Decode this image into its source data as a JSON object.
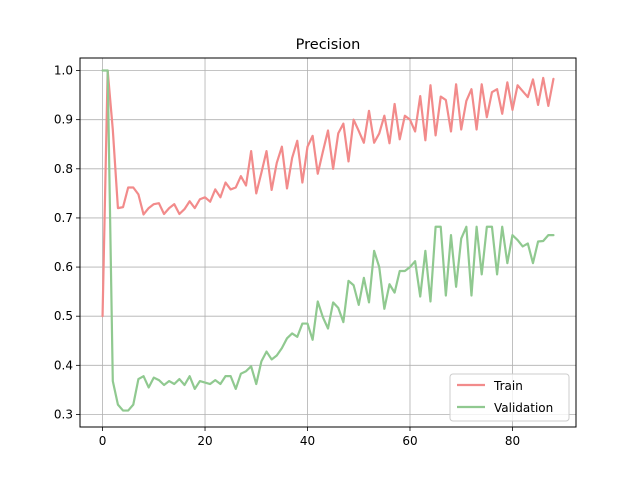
{
  "chart_data": {
    "type": "line",
    "title": "Precision",
    "xlabel": "",
    "ylabel": "",
    "xlim": [
      -4.4,
      92.4
    ],
    "ylim": [
      0.2745,
      1.0255
    ],
    "xticks": [
      0,
      20,
      40,
      60,
      80
    ],
    "yticks": [
      0.3,
      0.4,
      0.5,
      0.6,
      0.7,
      0.8,
      0.9,
      1.0
    ],
    "ytick_labels": [
      "0.3",
      "0.4",
      "0.5",
      "0.6",
      "0.7",
      "0.8",
      "0.9",
      "1.0"
    ],
    "grid": true,
    "legend_position": "lower right",
    "series": [
      {
        "name": "Train",
        "color": "#f28b8b",
        "x": [
          0,
          1,
          2,
          3,
          4,
          5,
          6,
          7,
          8,
          9,
          10,
          11,
          12,
          13,
          14,
          15,
          16,
          17,
          18,
          19,
          20,
          21,
          22,
          23,
          24,
          25,
          26,
          27,
          28,
          29,
          30,
          31,
          32,
          33,
          34,
          35,
          36,
          37,
          38,
          39,
          40,
          41,
          42,
          43,
          44,
          45,
          46,
          47,
          48,
          49,
          50,
          51,
          52,
          53,
          54,
          55,
          56,
          57,
          58,
          59,
          60,
          61,
          62,
          63,
          64,
          65,
          66,
          67,
          68,
          69,
          70,
          71,
          72,
          73,
          74,
          75,
          76,
          77,
          78,
          79,
          80,
          81,
          82,
          83,
          84,
          85,
          86,
          87,
          88
        ],
        "values": [
          0.5,
          1.0,
          0.88,
          0.72,
          0.722,
          0.762,
          0.762,
          0.748,
          0.707,
          0.72,
          0.728,
          0.73,
          0.708,
          0.72,
          0.728,
          0.708,
          0.718,
          0.734,
          0.72,
          0.738,
          0.742,
          0.733,
          0.758,
          0.742,
          0.772,
          0.758,
          0.762,
          0.785,
          0.766,
          0.836,
          0.75,
          0.792,
          0.836,
          0.757,
          0.812,
          0.845,
          0.76,
          0.822,
          0.857,
          0.772,
          0.845,
          0.867,
          0.79,
          0.835,
          0.878,
          0.8,
          0.872,
          0.892,
          0.815,
          0.9,
          0.877,
          0.853,
          0.918,
          0.853,
          0.872,
          0.908,
          0.852,
          0.932,
          0.86,
          0.908,
          0.9,
          0.876,
          0.948,
          0.858,
          0.97,
          0.868,
          0.947,
          0.94,
          0.876,
          0.972,
          0.88,
          0.938,
          0.962,
          0.88,
          0.972,
          0.905,
          0.956,
          0.962,
          0.912,
          0.976,
          0.92,
          0.97,
          0.958,
          0.946,
          0.982,
          0.93,
          0.985,
          0.928,
          0.983
        ]
      },
      {
        "name": "Validation",
        "color": "#90c990",
        "x": [
          0,
          1,
          2,
          3,
          4,
          5,
          6,
          7,
          8,
          9,
          10,
          11,
          12,
          13,
          14,
          15,
          16,
          17,
          18,
          19,
          20,
          21,
          22,
          23,
          24,
          25,
          26,
          27,
          28,
          29,
          30,
          31,
          32,
          33,
          34,
          35,
          36,
          37,
          38,
          39,
          40,
          41,
          42,
          43,
          44,
          45,
          46,
          47,
          48,
          49,
          50,
          51,
          52,
          53,
          54,
          55,
          56,
          57,
          58,
          59,
          60,
          61,
          62,
          63,
          64,
          65,
          66,
          67,
          68,
          69,
          70,
          71,
          72,
          73,
          74,
          75,
          76,
          77,
          78,
          79,
          80,
          81,
          82,
          83,
          84,
          85,
          86,
          87,
          88
        ],
        "values": [
          1.0,
          1.0,
          0.368,
          0.32,
          0.308,
          0.308,
          0.32,
          0.372,
          0.378,
          0.355,
          0.375,
          0.37,
          0.36,
          0.368,
          0.362,
          0.372,
          0.36,
          0.378,
          0.352,
          0.368,
          0.365,
          0.362,
          0.37,
          0.362,
          0.378,
          0.378,
          0.352,
          0.383,
          0.388,
          0.398,
          0.362,
          0.408,
          0.428,
          0.412,
          0.42,
          0.435,
          0.455,
          0.465,
          0.458,
          0.485,
          0.485,
          0.452,
          0.53,
          0.498,
          0.475,
          0.528,
          0.517,
          0.488,
          0.572,
          0.563,
          0.523,
          0.578,
          0.528,
          0.633,
          0.6,
          0.515,
          0.565,
          0.548,
          0.592,
          0.592,
          0.6,
          0.612,
          0.54,
          0.633,
          0.53,
          0.682,
          0.682,
          0.542,
          0.665,
          0.56,
          0.658,
          0.682,
          0.542,
          0.682,
          0.585,
          0.682,
          0.682,
          0.585,
          0.682,
          0.608,
          0.665,
          0.655,
          0.642,
          0.648,
          0.608,
          0.652,
          0.653,
          0.665,
          0.665
        ]
      }
    ]
  }
}
